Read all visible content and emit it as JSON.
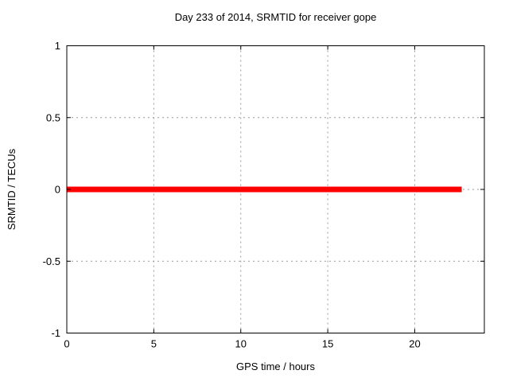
{
  "chart_data": {
    "type": "line",
    "title": "Day 233 of 2014, SRMTID for receiver gope",
    "xlabel": "GPS time / hours",
    "ylabel": "SRMTID / TECUs",
    "xlim": [
      0,
      24
    ],
    "ylim": [
      -1,
      1
    ],
    "xticks": [
      0,
      5,
      10,
      15,
      20
    ],
    "yticks": [
      1,
      0.5,
      0,
      -0.5,
      -1
    ],
    "grid": true,
    "grid_color": "#9a9a9a",
    "border_color": "#000000",
    "background": "#ffffff",
    "legend": "none",
    "series": [
      {
        "name": "SRMTID",
        "color": "#ff0000",
        "linewidth": 7,
        "x": [
          0,
          22.7
        ],
        "y": [
          0,
          0
        ],
        "description": "constant zero line from 0 to ~22.7 GPS hours"
      }
    ]
  }
}
